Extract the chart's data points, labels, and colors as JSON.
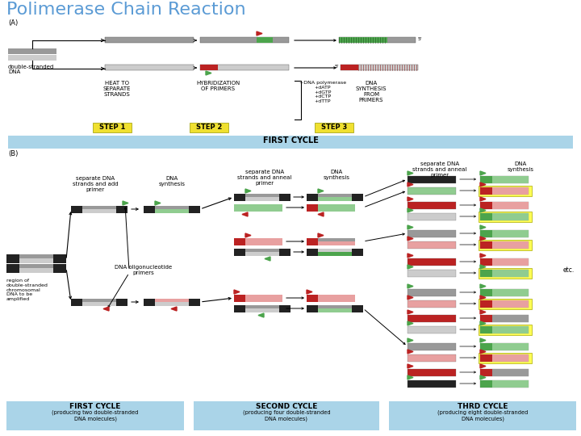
{
  "title": "Polimerase Chain Reaction",
  "title_color": "#5b9bd5",
  "title_fontsize": 16,
  "bg_color": "#ffffff",
  "light_blue": "#aad4e8",
  "gray_dna": "#999999",
  "lt_gray": "#cccccc",
  "black": "#111111",
  "green_primer": "#4ca44c",
  "dark_green": "#2d7a2d",
  "red_primer": "#bb2222",
  "pink_new": "#e8a0a0",
  "light_green_new": "#90cc90",
  "yellow_highlight": "#ffff55",
  "step_yellow": "#f0e030",
  "first_cycle_label": "FIRST CYCLE",
  "second_cycle_label": "SECOND CYCLE",
  "third_cycle_label": "THRD CYCLE",
  "fc_sub": "(producing two double-stranded\nDNA molecules)",
  "sc_sub": "(producing four double-stranded\nDNA molecules)",
  "tc_sub": "(producing eight double-stranded\nDNA molecules)"
}
